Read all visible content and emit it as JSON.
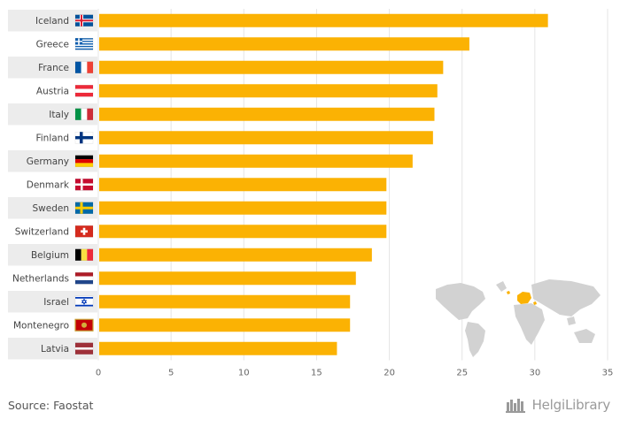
{
  "chart_data": {
    "type": "bar",
    "orientation": "horizontal",
    "categories": [
      "Iceland",
      "Greece",
      "France",
      "Austria",
      "Italy",
      "Finland",
      "Germany",
      "Denmark",
      "Sweden",
      "Switzerland",
      "Belgium",
      "Netherlands",
      "Israel",
      "Montenegro",
      "Latvia"
    ],
    "values": [
      30.9,
      25.5,
      23.7,
      23.3,
      23.1,
      23.0,
      21.6,
      19.8,
      19.8,
      19.8,
      18.8,
      17.7,
      17.3,
      17.3,
      16.4
    ],
    "xlim": [
      0,
      35
    ],
    "xticks": [
      0,
      5,
      10,
      15,
      20,
      25,
      30,
      35
    ],
    "grid": true,
    "bar_color": "#FBB203",
    "row_band_color": "#ECECEC",
    "flags": [
      "iceland-flag-icon",
      "greece-flag-icon",
      "france-flag-icon",
      "austria-flag-icon",
      "italy-flag-icon",
      "finland-flag-icon",
      "germany-flag-icon",
      "denmark-flag-icon",
      "sweden-flag-icon",
      "switzerland-flag-icon",
      "belgium-flag-icon",
      "netherlands-flag-icon",
      "israel-flag-icon",
      "montenegro-flag-icon",
      "latvia-flag-icon"
    ]
  },
  "footer": {
    "source": "Source: Faostat",
    "brand": "HelgiLibrary"
  }
}
